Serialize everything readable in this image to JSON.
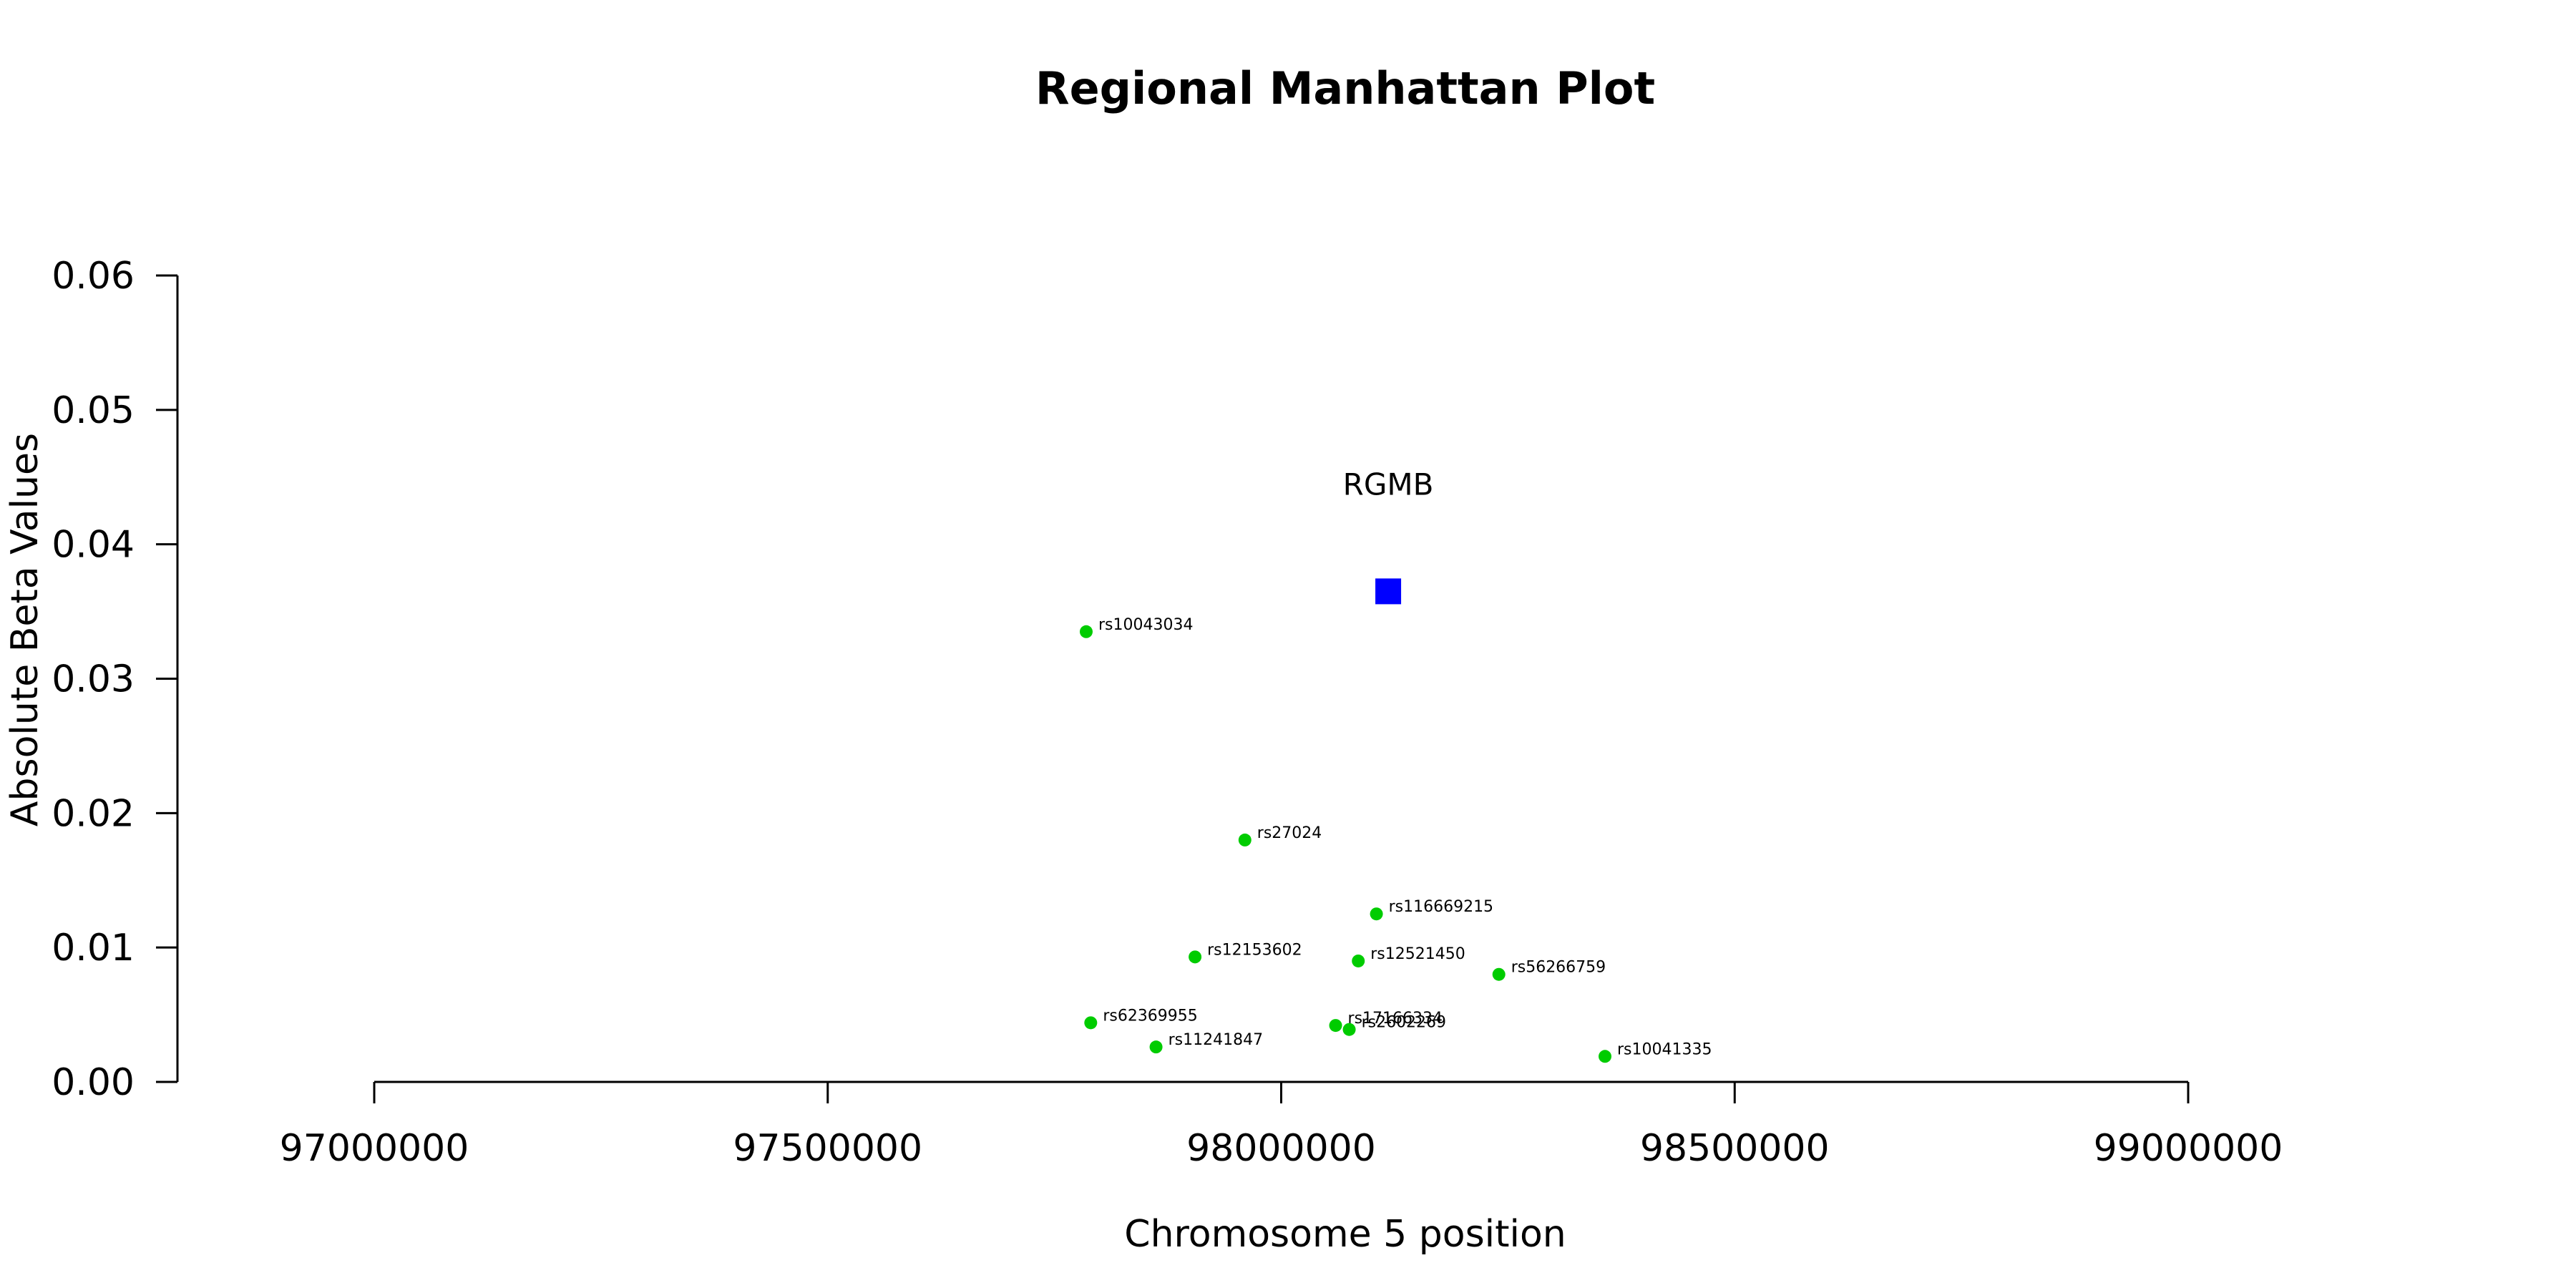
{
  "chart_data": {
    "type": "scatter",
    "title": "Regional Manhattan Plot",
    "xlabel": "Chromosome 5 position",
    "ylabel": "Absolute Beta Values",
    "xlim": [
      96800000,
      99000000
    ],
    "ylim": [
      0,
      0.06
    ],
    "x_ticks": [
      97000000,
      97500000,
      98000000,
      98500000,
      99000000
    ],
    "x_tick_labels": [
      "97000000",
      "97500000",
      "98000000",
      "98500000",
      "99000000"
    ],
    "y_ticks": [
      0.0,
      0.01,
      0.02,
      0.03,
      0.04,
      0.05,
      0.06
    ],
    "y_tick_labels": [
      "0.00",
      "0.01",
      "0.02",
      "0.03",
      "0.04",
      "0.05",
      "0.06"
    ],
    "grid": false,
    "series": [
      {
        "marker": "circle",
        "color": "#00cc00",
        "points": [
          {
            "label": "rs10043034",
            "x": 97785000,
            "y": 0.0335
          },
          {
            "label": "rs27024",
            "x": 97960000,
            "y": 0.018
          },
          {
            "label": "rs116669215",
            "x": 98105000,
            "y": 0.0125
          },
          {
            "label": "rs12153602",
            "x": 97905000,
            "y": 0.0093
          },
          {
            "label": "rs12521450",
            "x": 98085000,
            "y": 0.009
          },
          {
            "label": "rs56266759",
            "x": 98240000,
            "y": 0.008
          },
          {
            "label": "rs62369955",
            "x": 97790000,
            "y": 0.0044
          },
          {
            "label": "rs17166334",
            "x": 98060000,
            "y": 0.0042
          },
          {
            "label": "rs2602269",
            "x": 98075000,
            "y": 0.0039
          },
          {
            "label": "rs11241847",
            "x": 97862000,
            "y": 0.0026
          },
          {
            "label": "rs10041335",
            "x": 98357000,
            "y": 0.0019
          }
        ]
      },
      {
        "marker": "square",
        "color": "#0000ff",
        "points": [
          {
            "label": "RGMB",
            "x": 98118000,
            "y": 0.0365
          }
        ]
      }
    ]
  }
}
